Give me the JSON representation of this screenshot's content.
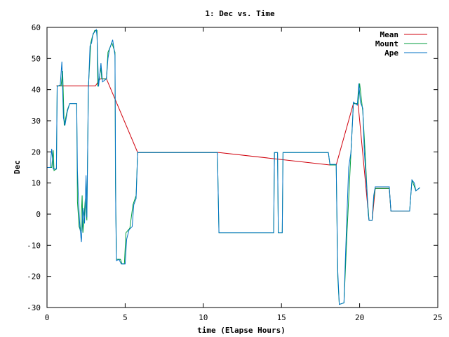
{
  "chart_data": {
    "type": "line",
    "title": "1: Dec vs. Time",
    "xlabel": "time (Elapse Hours)",
    "ylabel": "Dec",
    "xlim": [
      0,
      25
    ],
    "ylim": [
      -30,
      60
    ],
    "xticks": [
      0,
      5,
      10,
      15,
      20,
      25
    ],
    "yticks": [
      -30,
      -20,
      -10,
      0,
      10,
      20,
      30,
      40,
      50,
      60
    ],
    "grid": false,
    "legend_position": "top-right",
    "series": [
      {
        "name": "Mean",
        "color": "#d0000c",
        "points": [
          [
            0.6,
            41.2
          ],
          [
            0.9,
            41.2
          ],
          [
            3.1,
            41.2
          ],
          [
            3.4,
            43.5
          ],
          [
            3.8,
            43.5
          ],
          [
            5.8,
            19.8
          ],
          [
            11.0,
            19.8
          ],
          [
            18.1,
            15.8
          ],
          [
            18.5,
            15.8
          ],
          [
            19.6,
            35.5
          ],
          [
            19.9,
            35.5
          ],
          [
            20.6,
            -2.0
          ],
          [
            20.8,
            -2.0
          ],
          [
            21.0,
            8.3
          ],
          [
            21.9,
            8.3
          ],
          [
            22.0,
            1.0
          ],
          [
            23.2,
            1.0
          ]
        ]
      },
      {
        "name": "Mount",
        "color": "#009e3c",
        "points": [
          [
            0.0,
            15.0
          ],
          [
            0.3,
            15.0
          ],
          [
            0.4,
            20.5
          ],
          [
            0.45,
            14.0
          ],
          [
            0.6,
            14.5
          ],
          [
            0.65,
            41.2
          ],
          [
            0.9,
            41.2
          ],
          [
            1.0,
            46.0
          ],
          [
            1.1,
            28.5
          ],
          [
            1.3,
            33.5
          ],
          [
            1.45,
            35.5
          ],
          [
            1.9,
            35.5
          ],
          [
            1.95,
            4.0
          ],
          [
            2.05,
            -4.0
          ],
          [
            2.15,
            -5.5
          ],
          [
            2.25,
            6.0
          ],
          [
            2.3,
            -6.0
          ],
          [
            2.45,
            5.0
          ],
          [
            2.55,
            -2.0
          ],
          [
            2.65,
            41.0
          ],
          [
            2.8,
            55.0
          ],
          [
            2.9,
            57.0
          ],
          [
            3.05,
            59.0
          ],
          [
            3.2,
            59.0
          ],
          [
            3.25,
            41.0
          ],
          [
            3.45,
            47.0
          ],
          [
            3.5,
            43.5
          ],
          [
            3.8,
            43.5
          ],
          [
            3.9,
            52.0
          ],
          [
            4.15,
            55.0
          ],
          [
            4.35,
            52.0
          ],
          [
            4.38,
            10.0
          ],
          [
            4.45,
            -14.5
          ],
          [
            4.7,
            -14.5
          ],
          [
            4.8,
            -16.0
          ],
          [
            4.95,
            -16.0
          ],
          [
            5.05,
            -6.0
          ],
          [
            5.3,
            -4.5
          ],
          [
            5.5,
            3.0
          ],
          [
            5.7,
            6.0
          ],
          [
            5.8,
            19.8
          ],
          [
            10.9,
            19.8
          ],
          [
            11.0,
            -6.0
          ],
          [
            14.5,
            -6.0
          ],
          [
            14.55,
            19.8
          ],
          [
            14.75,
            19.8
          ],
          [
            14.8,
            -6.0
          ],
          [
            15.05,
            -6.0
          ],
          [
            15.1,
            19.8
          ],
          [
            18.0,
            19.8
          ],
          [
            18.1,
            15.8
          ],
          [
            18.5,
            15.8
          ],
          [
            18.6,
            -20.0
          ],
          [
            18.7,
            -29.0
          ],
          [
            19.0,
            -28.5
          ],
          [
            19.2,
            -5.0
          ],
          [
            19.45,
            20.0
          ],
          [
            19.6,
            35.5
          ],
          [
            19.9,
            35.5
          ],
          [
            20.0,
            42.0
          ],
          [
            20.2,
            33.0
          ],
          [
            20.35,
            20.0
          ],
          [
            20.5,
            5.0
          ],
          [
            20.6,
            -2.0
          ],
          [
            20.8,
            -2.0
          ],
          [
            20.9,
            5.0
          ],
          [
            21.0,
            8.3
          ],
          [
            21.9,
            8.3
          ],
          [
            22.0,
            1.0
          ],
          [
            23.2,
            1.0
          ],
          [
            23.35,
            11.0
          ],
          [
            23.6,
            7.5
          ],
          [
            23.85,
            8.5
          ]
        ]
      },
      {
        "name": "Ape",
        "color": "#0072c6",
        "points": [
          [
            0.0,
            15.0
          ],
          [
            0.2,
            15.0
          ],
          [
            0.3,
            21.0
          ],
          [
            0.4,
            14.5
          ],
          [
            0.6,
            14.5
          ],
          [
            0.65,
            41.0
          ],
          [
            0.85,
            41.5
          ],
          [
            0.95,
            49.0
          ],
          [
            1.05,
            31.0
          ],
          [
            1.15,
            28.5
          ],
          [
            1.3,
            33.0
          ],
          [
            1.45,
            35.5
          ],
          [
            1.9,
            35.5
          ],
          [
            1.95,
            14.0
          ],
          [
            2.0,
            6.0
          ],
          [
            2.1,
            -4.0
          ],
          [
            2.2,
            -9.0
          ],
          [
            2.3,
            2.0
          ],
          [
            2.4,
            -3.0
          ],
          [
            2.5,
            12.5
          ],
          [
            2.55,
            -1.0
          ],
          [
            2.65,
            40.0
          ],
          [
            2.75,
            54.0
          ],
          [
            2.85,
            55.0
          ],
          [
            2.95,
            58.0
          ],
          [
            3.05,
            58.5
          ],
          [
            3.15,
            59.3
          ],
          [
            3.2,
            57.0
          ],
          [
            3.3,
            41.0
          ],
          [
            3.45,
            48.5
          ],
          [
            3.55,
            42.5
          ],
          [
            3.8,
            43.5
          ],
          [
            3.9,
            50.0
          ],
          [
            4.0,
            53.0
          ],
          [
            4.2,
            56.0
          ],
          [
            4.35,
            51.0
          ],
          [
            4.4,
            0.0
          ],
          [
            4.45,
            -15.0
          ],
          [
            4.6,
            -14.5
          ],
          [
            4.75,
            -16.0
          ],
          [
            5.0,
            -16.0
          ],
          [
            5.1,
            -8.0
          ],
          [
            5.25,
            -5.0
          ],
          [
            5.45,
            -4.0
          ],
          [
            5.55,
            3.0
          ],
          [
            5.7,
            5.0
          ],
          [
            5.8,
            19.8
          ],
          [
            10.9,
            19.8
          ],
          [
            11.0,
            -6.0
          ],
          [
            14.5,
            -6.0
          ],
          [
            14.55,
            19.8
          ],
          [
            14.75,
            19.8
          ],
          [
            14.8,
            -6.0
          ],
          [
            15.05,
            -6.0
          ],
          [
            15.1,
            19.8
          ],
          [
            18.0,
            19.8
          ],
          [
            18.1,
            16.0
          ],
          [
            18.5,
            16.0
          ],
          [
            18.6,
            -18.0
          ],
          [
            18.7,
            -29.0
          ],
          [
            19.0,
            -28.5
          ],
          [
            19.1,
            -13.0
          ],
          [
            19.3,
            15.0
          ],
          [
            19.45,
            20.0
          ],
          [
            19.55,
            30.0
          ],
          [
            19.6,
            36.0
          ],
          [
            19.85,
            35.0
          ],
          [
            19.95,
            42.0
          ],
          [
            20.05,
            36.0
          ],
          [
            20.2,
            34.0
          ],
          [
            20.3,
            20.0
          ],
          [
            20.45,
            9.0
          ],
          [
            20.55,
            0.0
          ],
          [
            20.6,
            -2.0
          ],
          [
            20.8,
            -2.0
          ],
          [
            20.9,
            6.0
          ],
          [
            21.0,
            8.8
          ],
          [
            21.9,
            8.8
          ],
          [
            22.0,
            1.0
          ],
          [
            23.2,
            1.0
          ],
          [
            23.35,
            11.0
          ],
          [
            23.5,
            10.0
          ],
          [
            23.6,
            7.5
          ],
          [
            23.85,
            8.5
          ]
        ]
      }
    ]
  }
}
